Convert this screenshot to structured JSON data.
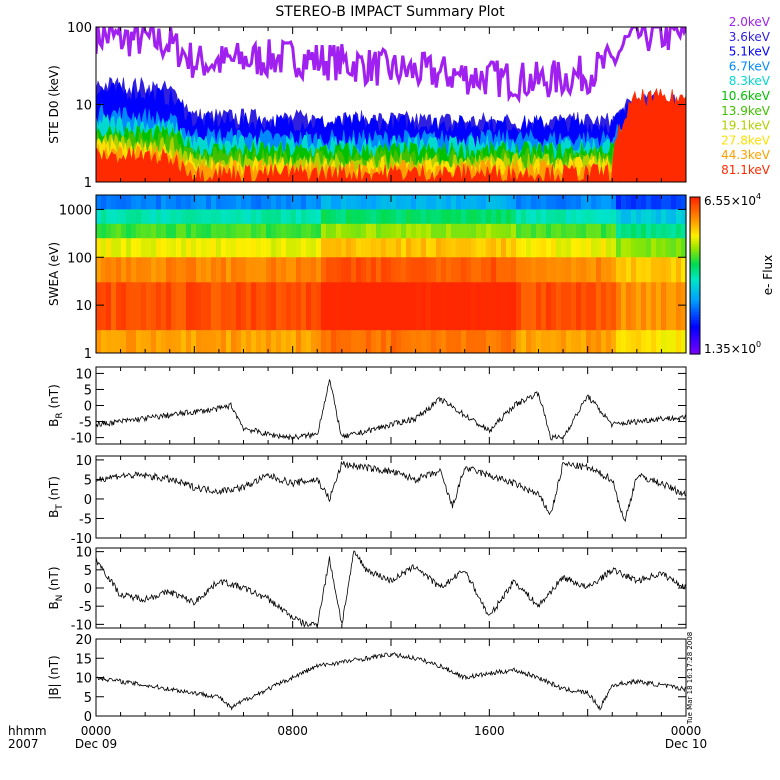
{
  "title": "STEREO-B IMPACT Summary Plot",
  "timestamp": "Tue Mar 18 16:17:28 2008",
  "time_axis": {
    "row1_label": "hhmm",
    "row2_label": "2007",
    "ticks": [
      {
        "t": 0,
        "hhmm": "0000",
        "date": "Dec 09"
      },
      {
        "t": 8,
        "hhmm": "0800",
        "date": ""
      },
      {
        "t": 16,
        "hhmm": "1600",
        "date": ""
      },
      {
        "t": 24,
        "hhmm": "0000",
        "date": "Dec 10"
      }
    ]
  },
  "colors": {
    "purple": "#8a2be2",
    "blue": "#0000ff",
    "red": "#ff2a00",
    "line": "#000000",
    "background": "#ffffff"
  },
  "chart_data": [
    {
      "type": "line",
      "id": "ste",
      "ylabel": "STE D0 (keV)",
      "yscale": "log",
      "ylim": [
        1,
        100
      ],
      "yticks": [
        "1",
        "10",
        "100"
      ],
      "legend_placement": "right",
      "series": [
        {
          "name": "2.0keV",
          "color": "#a020f0",
          "x": [
            0,
            1,
            2,
            3,
            4,
            5,
            6,
            8,
            10,
            12,
            14,
            16,
            18,
            19,
            20,
            21,
            22,
            23,
            24
          ],
          "values": [
            80,
            70,
            70,
            60,
            35,
            35,
            38,
            40,
            35,
            28,
            25,
            22,
            20,
            22,
            25,
            35,
            80,
            80,
            80
          ]
        },
        {
          "name": "3.6keV",
          "color": "#3020e0",
          "x": [
            0,
            2,
            3,
            4,
            8,
            16,
            20,
            21,
            22,
            24
          ],
          "values": [
            18,
            17,
            15,
            7,
            6.5,
            6,
            6,
            6,
            11,
            11
          ]
        },
        {
          "name": "5.1keV",
          "color": "#0000ff",
          "x": [
            0,
            2,
            3,
            4,
            8,
            16,
            20,
            21,
            22,
            24
          ],
          "values": [
            15,
            14,
            12,
            6,
            5.8,
            5.5,
            5.5,
            5.5,
            10,
            10
          ]
        },
        {
          "name": "6.7keV",
          "color": "#0088ff",
          "x": [
            0,
            2,
            3,
            4,
            8,
            16,
            20,
            21,
            22,
            24
          ],
          "values": [
            8,
            7,
            6,
            4,
            3.6,
            3.6,
            3.6,
            3.6,
            7,
            7
          ]
        },
        {
          "name": "8.3keV",
          "color": "#00d8d0",
          "x": [
            0,
            2,
            3,
            4,
            8,
            16,
            20,
            21,
            22,
            24
          ],
          "values": [
            6,
            5.5,
            5,
            3.2,
            3,
            3,
            3,
            3,
            6,
            6
          ]
        },
        {
          "name": "10.6keV",
          "color": "#00c000",
          "x": [
            0,
            2,
            3,
            4,
            8,
            16,
            20,
            21,
            22,
            24
          ],
          "values": [
            4.5,
            4.2,
            4,
            2.6,
            2.5,
            2.5,
            2.5,
            2.6,
            5,
            5
          ]
        },
        {
          "name": "13.9keV",
          "color": "#40c000",
          "x": [
            0,
            2,
            3,
            4,
            8,
            16,
            20,
            21,
            22,
            24
          ],
          "values": [
            3.8,
            3.6,
            3.5,
            2.2,
            2.1,
            2.1,
            2.1,
            2.2,
            4.5,
            4.5
          ]
        },
        {
          "name": "19.1keV",
          "color": "#b0d000",
          "x": [
            0,
            2,
            3,
            4,
            8,
            16,
            20,
            21,
            22,
            24
          ],
          "values": [
            3.2,
            3,
            3,
            1.9,
            1.8,
            1.8,
            1.8,
            1.9,
            4,
            4
          ]
        },
        {
          "name": "27.8keV",
          "color": "#ffe000",
          "x": [
            0,
            2,
            3,
            4,
            8,
            16,
            20,
            21,
            22,
            24
          ],
          "values": [
            2.8,
            2.6,
            2.5,
            1.7,
            1.6,
            1.6,
            1.6,
            1.7,
            3.6,
            3.6
          ]
        },
        {
          "name": "44.3keV",
          "color": "#ffa000",
          "x": [
            0,
            2,
            3,
            4,
            8,
            16,
            20,
            21,
            22,
            24
          ],
          "values": [
            2.4,
            2.3,
            2.2,
            1.5,
            1.45,
            1.45,
            1.45,
            1.5,
            3.2,
            3.2
          ]
        },
        {
          "name": "81.1keV",
          "color": "#ff2a00",
          "x": [
            0,
            2,
            3,
            4,
            8,
            16,
            20,
            21,
            22,
            24
          ],
          "values": [
            2.2,
            2.1,
            2,
            1.3,
            1.3,
            1.3,
            1.3,
            1.35,
            12,
            12
          ]
        }
      ]
    },
    {
      "type": "heatmap",
      "id": "swea",
      "ylabel": "SWEA (eV)",
      "yscale": "log",
      "ylim": [
        1,
        2000
      ],
      "yticks": [
        "1",
        "10",
        "100",
        "1000"
      ],
      "colorbar": {
        "max": "6.55×10",
        "max_exp": "4",
        "min": "1.35×10",
        "min_exp": "0",
        "label": "e- Flux"
      },
      "description_x": [
        0,
        24
      ],
      "energy_bands": [
        {
          "e_low": 1000,
          "e_high": 2000,
          "level": 0.32
        },
        {
          "e_low": 500,
          "e_high": 1000,
          "level": 0.5
        },
        {
          "e_low": 250,
          "e_high": 500,
          "level": 0.62
        },
        {
          "e_low": 100,
          "e_high": 250,
          "level": 0.75
        },
        {
          "e_low": 30,
          "e_high": 100,
          "level": 0.88
        },
        {
          "e_low": 3,
          "e_high": 30,
          "level": 0.95
        },
        {
          "e_low": 1,
          "e_high": 3,
          "level": 0.85
        }
      ]
    },
    {
      "type": "line",
      "id": "br",
      "ylabel": "B",
      "ylabel_sub": "R",
      "ylabel_unit": " (nT)",
      "ylim": [
        -12,
        12
      ],
      "yticks": [
        "-10",
        "-5",
        "0",
        "5",
        "10"
      ],
      "ytick_values": [
        -10,
        -5,
        0,
        5,
        10
      ],
      "x": [
        0,
        1,
        2,
        3,
        4,
        5,
        5.5,
        6,
        7,
        8,
        9,
        9.5,
        10,
        11,
        12,
        13,
        14,
        15,
        16,
        17,
        18,
        18.5,
        19,
        20,
        21,
        22,
        23,
        24
      ],
      "values": [
        -6,
        -5,
        -4,
        -3,
        -2,
        -1,
        0,
        -7,
        -9,
        -10,
        -9,
        8,
        -10,
        -8,
        -6,
        -4,
        2,
        -3,
        -8,
        0,
        4,
        -10,
        -10,
        3,
        -6,
        -5,
        -4,
        -4
      ]
    },
    {
      "type": "line",
      "id": "bt",
      "ylabel": "B",
      "ylabel_sub": "T",
      "ylabel_unit": " (nT)",
      "ylim": [
        -10,
        11
      ],
      "yticks": [
        "-10",
        "-5",
        "0",
        "5",
        "10"
      ],
      "ytick_values": [
        -10,
        -5,
        0,
        5,
        10
      ],
      "x": [
        0,
        1,
        2,
        3,
        4,
        5,
        6,
        7,
        8,
        9,
        9.5,
        10,
        11,
        12,
        13,
        14,
        14.5,
        15,
        16,
        17,
        18,
        18.5,
        19,
        20,
        21,
        21.5,
        22,
        23,
        24
      ],
      "values": [
        5,
        6,
        6,
        5,
        3,
        2,
        3,
        6,
        4,
        5,
        0,
        9,
        8,
        7,
        5,
        7,
        -2,
        8,
        6,
        4,
        1,
        -4,
        9,
        8,
        5,
        -6,
        6,
        4,
        1
      ]
    },
    {
      "type": "line",
      "id": "bn",
      "ylabel": "B",
      "ylabel_sub": "N",
      "ylabel_unit": " (nT)",
      "ylim": [
        -11,
        11
      ],
      "yticks": [
        "-10",
        "-5",
        "0",
        "5",
        "10"
      ],
      "ytick_values": [
        -10,
        -5,
        0,
        5,
        10
      ],
      "x": [
        0,
        0.5,
        1,
        2,
        3,
        4,
        5,
        6,
        7,
        8,
        8.5,
        9,
        9.5,
        10,
        10.5,
        11,
        12,
        13,
        14,
        15,
        16,
        17,
        18,
        19,
        20,
        21,
        22,
        23,
        24
      ],
      "values": [
        8,
        3,
        -2,
        -3,
        -1,
        -4,
        2,
        0,
        -3,
        -8,
        -10,
        -10,
        8,
        -10,
        10,
        5,
        2,
        6,
        0,
        5,
        -8,
        2,
        -5,
        3,
        0,
        5,
        2,
        4,
        0
      ]
    },
    {
      "type": "line",
      "id": "bmag",
      "ylabel": "|B| (nT)",
      "ylim": [
        0,
        20
      ],
      "yticks": [
        "0",
        "5",
        "10",
        "15",
        "20"
      ],
      "ytick_values": [
        0,
        5,
        10,
        15,
        20
      ],
      "x": [
        0,
        1,
        2,
        3,
        4,
        5,
        5.5,
        6,
        7,
        8,
        9,
        10,
        11,
        12,
        13,
        14,
        15,
        16,
        17,
        18,
        19,
        20,
        20.5,
        21,
        22,
        23,
        24
      ],
      "values": [
        10,
        9,
        8,
        7,
        6,
        5,
        2,
        4,
        7,
        10,
        13,
        14,
        15,
        16,
        15,
        13,
        10,
        11,
        12,
        10,
        7,
        6,
        2,
        8,
        9,
        8,
        7
      ]
    }
  ]
}
